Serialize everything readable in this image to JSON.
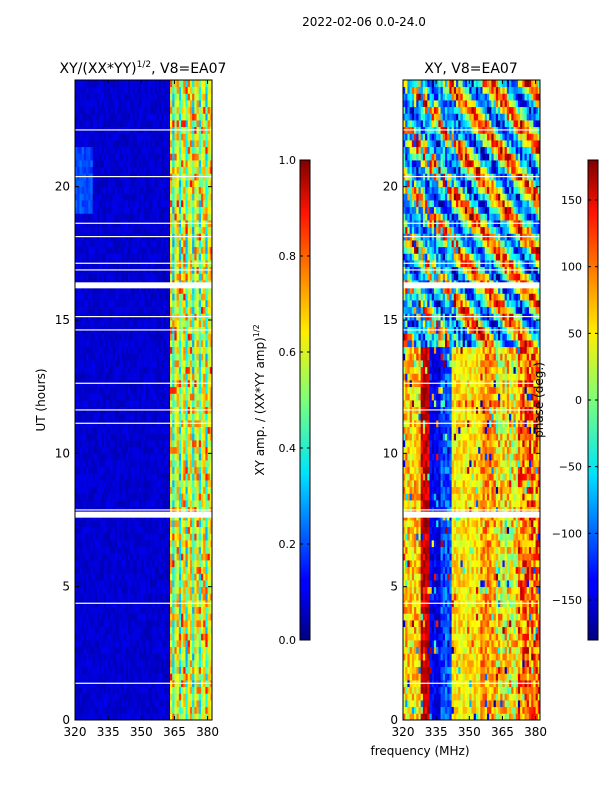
{
  "suptitle": "2022-02-06 0.0-24.0",
  "shared_xlabel": "frequency (MHz)",
  "chart_data": [
    {
      "type": "heatmap",
      "title_main": "XY/(XX*YY)",
      "title_sup": "1/2",
      "title_tail": ", V8=EA07",
      "ylabel": "UT (hours)",
      "xlim": [
        320,
        382
      ],
      "ylim": [
        0,
        24
      ],
      "xticks": [
        320,
        335,
        350,
        365,
        380
      ],
      "yticks": [
        0,
        5,
        10,
        15,
        20
      ],
      "colorbar": {
        "label_main": "XY amp. / (XX*YY amp)",
        "label_sup": "1/2",
        "range": [
          0.0,
          1.0
        ],
        "ticks": [
          0.0,
          0.2,
          0.4,
          0.6,
          0.8,
          1.0
        ],
        "tick_labels": [
          "0.0",
          "0.2",
          "0.4",
          "0.6",
          "0.8",
          "1.0"
        ]
      },
      "flagged_hours": [
        7.7,
        16.3
      ],
      "band_edge_mhz": 363
    },
    {
      "type": "heatmap",
      "title_main": "XY, V8=EA07",
      "title_sup": "",
      "title_tail": "",
      "ylabel": "",
      "xlim": [
        320,
        382
      ],
      "ylim": [
        0,
        24
      ],
      "xticks": [
        320,
        335,
        350,
        365,
        380
      ],
      "yticks": [
        0,
        5,
        10,
        15,
        20
      ],
      "colorbar": {
        "label_main": "phase (deg.)",
        "label_sup": "",
        "range": [
          -180,
          180
        ],
        "ticks": [
          -150,
          -100,
          -50,
          0,
          50,
          100,
          150
        ],
        "tick_labels": [
          "−150",
          "−100",
          "−50",
          "0",
          "50",
          "100",
          "150"
        ]
      },
      "flagged_hours": [
        7.7,
        16.3
      ]
    }
  ]
}
